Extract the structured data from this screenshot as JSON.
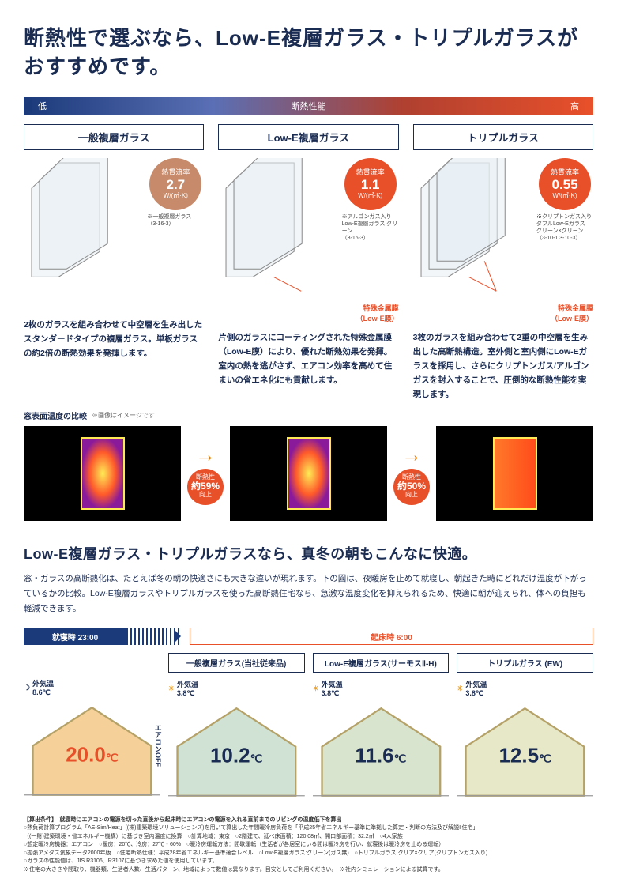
{
  "colors": {
    "badge_general": "#c78a6a",
    "badge_lowe": "#e8502a",
    "badge_triple": "#e8502a",
    "accent": "#e8502a",
    "navy": "#1b2c52"
  },
  "title": "断熱性で選ぶなら、Low-E複層ガラス・トリプルガラスがおすすめです。",
  "perf_bar": {
    "left": "低",
    "center": "断熱性能",
    "right": "高"
  },
  "columns": [
    {
      "title": "一般複層ガラス",
      "badge": {
        "label": "熱貫流率",
        "value": "2.7",
        "unit": "W/(㎡·K)",
        "note": "※一般複層ガラス\n（3-16-3）"
      },
      "film_label": "",
      "desc": "2枚のガラスを組み合わせて中空層を生み出したスタンダードタイプの複層ガラス。単板ガラスの約2倍の断熱効果を発揮します。"
    },
    {
      "title": "Low-E複層ガラス",
      "badge": {
        "label": "熱貫流率",
        "value": "1.1",
        "unit": "W/(㎡·K)",
        "note": "※アルゴンガス入り\nLow-E複層ガラス グリーン\n（3-16-3）"
      },
      "film_label": "特殊金属膜\n（Low-E膜）",
      "desc": "片側のガラスにコーティングされた特殊金属膜（Low-E膜）により、優れた断熱効果を発揮。室内の熱を逃がさず、エアコン効率を高めて住まいの省エネ化にも貢献します。"
    },
    {
      "title": "トリプルガラス",
      "badge": {
        "label": "熱貫流率",
        "value": "0.55",
        "unit": "W/(㎡·K)",
        "note": "※クリプトンガス入り\nダブルLow-Eガラス\nグリーン×グリーン\n（3-10-1.3-10-3）"
      },
      "film_label": "特殊金属膜\n（Low-E膜）",
      "desc": "3枚のガラスを組み合わせて2重の中空層を生み出した高断熱構造。室外側と室内側にLow-Eガラスを採用し、さらにクリプトンガス/アルゴンガスを封入することで、圧倒的な断熱性能を実現します。"
    }
  ],
  "thermal": {
    "caption": "窓表面温度の比較",
    "caption_sub": "※画像はイメージです",
    "improve": [
      {
        "top": "断熱性",
        "pct": "約59%",
        "bot": "向上"
      },
      {
        "top": "断熱性",
        "pct": "約50%",
        "bot": "向上"
      }
    ]
  },
  "section2_title": "Low-E複層ガラス・トリプルガラスなら、真冬の朝もこんなに快適。",
  "section2_body": "窓・ガラスの高断熱化は、たとえば冬の朝の快適さにも大きな違いが現れます。下の図は、夜暖房を止めて就寝し、朝起きた時にどれだけ温度が下がっているかの比較。Low-E複層ガラスやトリプルガラスを使った高断熱住宅なら、急激な温度変化を抑えられるため、快適に朝が迎えられ、体への負担も軽減できます。",
  "time_bar": {
    "night": "就寝時 23:00",
    "morning": "起床時 6:00"
  },
  "houses": [
    {
      "title": "",
      "outside": "外気温\n8.6℃",
      "temp": "20.0",
      "temp_color": "#e8502a",
      "aircon": "エアコンOFF",
      "sun": false,
      "house_fill": "#f5d098"
    },
    {
      "title": "一般複層ガラス(当社従来品)",
      "outside": "外気温\n3.8℃",
      "temp": "10.2",
      "temp_color": "#1b2c52",
      "sun": true,
      "house_fill": "#d0e2d4"
    },
    {
      "title": "Low-E複層ガラス(サーモスⅡ-H)",
      "outside": "外気温\n3.8℃",
      "temp": "11.6",
      "temp_color": "#1b2c52",
      "sun": true,
      "house_fill": "#d8e4ce"
    },
    {
      "title": "トリプルガラス (EW)",
      "outside": "外気温\n3.8℃",
      "temp": "12.5",
      "temp_color": "#1b2c52",
      "sun": true,
      "house_fill": "#e6e8c8"
    }
  ],
  "fine": {
    "title": "【算出条件】　就寝時にエアコンの電源を切った直後から起床時にエアコンの電源を入れる直前までのリビングの温度低下を算出",
    "lines": [
      "○熱負荷計算プログラム「AE-Sim/Heat」((株)建築環境ソリューションズ)を用いて算出した年間暖冷房負荷を「平成25年省エネルギー基準に準拠した算定・判断の方法及び解説Ⅱ住宅」",
      "（(一財)建築環境・省エネルギー機構）に基づき室内温度に換算　○計算地域：東京　○2階建て、延べ床面積：120.08㎡、開口部面積：32.2㎡　○4人家族",
      "○想定暖冷房機器：エアコン　○暖房：20℃、冷房：27℃・60%　○暖冷房運転方法：間歇運転（生活者が各居室にいる間は暖冷房を行い、就寝後は暖冷房を止める運転）",
      "○拡張アメダス気象データ2000年版　○住宅断熱仕様：平成28年省エネルギー基準適合レベル　○Low-E複層ガラス:グリーン(ガス無)　○トリプルガラス:クリア×クリア(クリプトンガス入り)",
      "○ガラスの性能値は、JIS R3106、R3107に基づき求めた値を使用しています。",
      "※住宅の大きさや間取り、機器類、生活者人数、生活パターン、地域によって数値は異なります。目安としてご利用ください。　※社内シミュレーションによる試算です。"
    ]
  }
}
